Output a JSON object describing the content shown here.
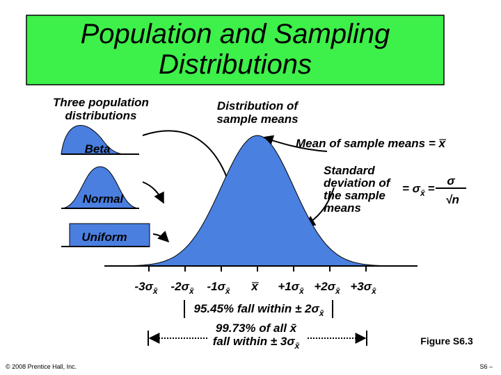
{
  "title": {
    "lines": [
      "Population and Sampling",
      "Distributions"
    ]
  },
  "population_label": {
    "lines": [
      "Three population",
      "distributions"
    ]
  },
  "sampling_label": {
    "lines": [
      "Distribution of",
      "sample means"
    ]
  },
  "populations": [
    "Beta",
    "Normal",
    "Uniform"
  ],
  "mean_note": {
    "text": "Mean of sample means =",
    "symbol": "x̿"
  },
  "sd_note": {
    "lines": [
      "Standard",
      "deviation of",
      "the sample",
      "means"
    ],
    "formula": {
      "eq1": "= σ",
      "sub": "x̄",
      "eq2": "=",
      "numerator": "σ",
      "denominator": "√n"
    }
  },
  "axis_labels": [
    {
      "main": "-3σ",
      "sub": "x̄"
    },
    {
      "main": "-2σ",
      "sub": "x̄"
    },
    {
      "main": "-1σ",
      "sub": "x̄"
    },
    {
      "main": "x̿"
    },
    {
      "main": "+1σ",
      "sub": "x̄"
    },
    {
      "main": "+2σ",
      "sub": "x̄"
    },
    {
      "main": "+3σ",
      "sub": "x̄"
    }
  ],
  "range_2sigma": {
    "text": "95.45% fall within ± 2σ",
    "sub": "x̄"
  },
  "range_3sigma": {
    "line1": "99.73% of all x̄",
    "line2": "fall within ± 3σ",
    "sub": "x̄"
  },
  "figure": "Figure S6.3",
  "copyright": "© 2008 Prentice Hall, Inc.",
  "page": "S6 –"
}
